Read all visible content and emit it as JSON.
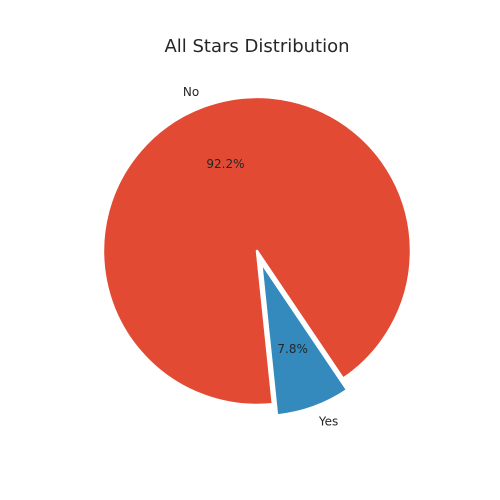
{
  "chart_data": {
    "type": "pie",
    "title": "All Stars Distribution",
    "labels": [
      "No",
      "Yes"
    ],
    "values": [
      92.2,
      7.8
    ],
    "value_labels": [
      "92.2%",
      "7.8%"
    ],
    "colors": [
      "#E24A33",
      "#348ABD"
    ],
    "exploded": [
      "Yes"
    ]
  }
}
